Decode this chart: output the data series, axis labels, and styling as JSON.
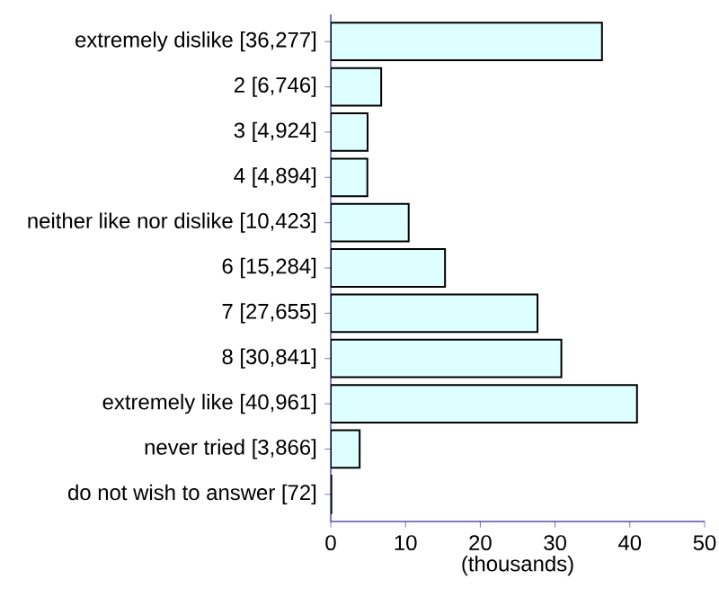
{
  "chart_data": {
    "type": "bar",
    "orientation": "horizontal",
    "xlabel": "(thousands)",
    "categories": [
      "extremely dislike [36,277]",
      "2 [6,746]",
      "3 [4,924]",
      "4 [4,894]",
      "neither like nor dislike [10,423]",
      "6 [15,284]",
      "7 [27,655]",
      "8 [30,841]",
      "extremely like [40,961]",
      "never tried [3,866]",
      "do not wish to answer [72]"
    ],
    "values": [
      36.277,
      6.746,
      4.924,
      4.894,
      10.423,
      15.284,
      27.655,
      30.841,
      40.961,
      3.866,
      0.072
    ],
    "color": "#ddffff",
    "xlim": [
      0,
      50
    ],
    "xticks": [
      0,
      10,
      20,
      30,
      40,
      50
    ],
    "grid": false
  }
}
